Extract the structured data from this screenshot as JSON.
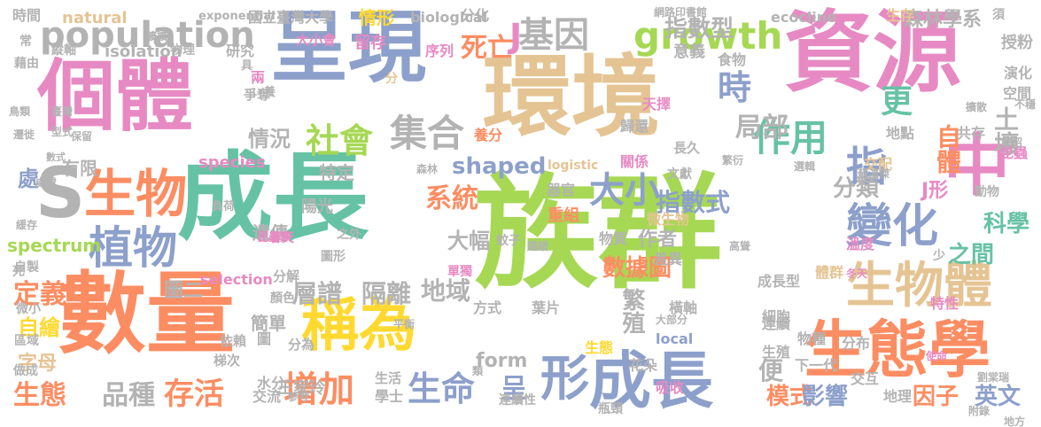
{
  "palette": [
    "#fc8d62",
    "#66c2a5",
    "#8da0cb",
    "#e78ac3",
    "#a6d854",
    "#ffd92f",
    "#e5c494",
    "#b3b3b3"
  ],
  "words": [
    {
      "text": "族群",
      "color": "#a6d854"
    },
    {
      "text": "成長",
      "color": "#66c2a5"
    },
    {
      "text": "數量",
      "color": "#fc8d62"
    },
    {
      "text": "環境",
      "color": "#e5c494"
    },
    {
      "text": "資源",
      "color": "#e78ac3"
    },
    {
      "text": "呈現",
      "color": "#8da0cb"
    },
    {
      "text": "個體",
      "color": "#e78ac3"
    },
    {
      "text": "生態學",
      "color": "#fc8d62"
    },
    {
      "text": "成長",
      "color": "#8da0cb"
    },
    {
      "text": "中",
      "color": "#e78ac3"
    },
    {
      "text": "稱為",
      "color": "#ffd92f"
    },
    {
      "text": "生物",
      "color": "#fc8d62"
    },
    {
      "text": "生物體",
      "color": "#e5c494"
    },
    {
      "text": "變化",
      "color": "#8da0cb"
    },
    {
      "text": "population",
      "color": "#b3b3b3"
    },
    {
      "text": "S",
      "color": "#b3b3b3"
    },
    {
      "text": "growth",
      "color": "#a6d854"
    },
    {
      "text": "植物",
      "color": "#8da0cb"
    },
    {
      "text": "集合",
      "color": "#b3b3b3"
    },
    {
      "text": "社會",
      "color": "#a6d854"
    },
    {
      "text": "基因",
      "color": "#b3b3b3"
    },
    {
      "text": "形",
      "color": "#8da0cb"
    },
    {
      "text": "作用",
      "color": "#66c2a5"
    },
    {
      "text": "增加",
      "color": "#fc8d62"
    },
    {
      "text": "生命",
      "color": "#8da0cb"
    },
    {
      "text": "大小",
      "color": "#8da0cb"
    },
    {
      "text": "指",
      "color": "#8da0cb"
    },
    {
      "text": "時",
      "color": "#8da0cb"
    },
    {
      "text": "局部",
      "color": "#b3b3b3"
    },
    {
      "text": "存活",
      "color": "#fc8d62"
    },
    {
      "text": "品種",
      "color": "#b3b3b3"
    },
    {
      "text": "生態",
      "color": "#fc8d62"
    },
    {
      "text": "定義",
      "color": "#fc8d62"
    },
    {
      "text": "地域",
      "color": "#b3b3b3"
    },
    {
      "text": "隔離",
      "color": "#b3b3b3"
    },
    {
      "text": "層譜",
      "color": "#b3b3b3"
    },
    {
      "text": "系統",
      "color": "#fc8d62"
    },
    {
      "text": "指數式",
      "color": "#8da0cb"
    },
    {
      "text": "死亡",
      "color": "#fc8d62"
    },
    {
      "text": "J",
      "color": "#e78ac3"
    },
    {
      "text": "分類",
      "color": "#b3b3b3"
    },
    {
      "text": "指數型",
      "color": "#b3b3b3"
    },
    {
      "text": "森林學系",
      "color": "#b3b3b3"
    },
    {
      "text": "更",
      "color": "#66c2a5"
    },
    {
      "text": "自體",
      "color": "#fc8d62"
    },
    {
      "text": "土壤",
      "color": "#b3b3b3"
    },
    {
      "text": "科學",
      "color": "#66c2a5"
    },
    {
      "text": "之間",
      "color": "#66c2a5"
    },
    {
      "text": "J形",
      "color": "#e78ac3"
    },
    {
      "text": "模式",
      "color": "#fc8d62"
    },
    {
      "text": "影響",
      "color": "#8da0cb"
    },
    {
      "text": "因子",
      "color": "#fc8d62"
    },
    {
      "text": "英文",
      "color": "#8da0cb"
    },
    {
      "text": "繁殖",
      "color": "#b3b3b3"
    },
    {
      "text": "呈",
      "color": "#8da0cb"
    },
    {
      "text": "數據圖",
      "color": "#fc8d62"
    },
    {
      "text": "作者",
      "color": "#b3b3b3"
    },
    {
      "text": "大幅",
      "color": "#b3b3b3"
    },
    {
      "text": "情況",
      "color": "#b3b3b3"
    },
    {
      "text": "情形",
      "color": "#ffd92f"
    },
    {
      "text": "shaped",
      "color": "#8da0cb"
    },
    {
      "text": "form",
      "color": "#b3b3b3"
    },
    {
      "text": "便",
      "color": "#b3b3b3"
    },
    {
      "text": "自繪",
      "color": "#ffd92f"
    },
    {
      "text": "處",
      "color": "#8da0cb"
    },
    {
      "text": "有限",
      "color": "#b3b3b3"
    },
    {
      "text": "特定",
      "color": "#b3b3b3"
    },
    {
      "text": "重組",
      "color": "#fc8d62"
    },
    {
      "text": "遺傳",
      "color": "#b3b3b3"
    },
    {
      "text": "陽光",
      "color": "#b3b3b3"
    },
    {
      "text": "圖二",
      "color": "#b3b3b3"
    },
    {
      "text": "字母",
      "color": "#e5c494"
    },
    {
      "text": "簡單",
      "color": "#b3b3b3"
    },
    {
      "text": "王家玲",
      "color": "#b3b3b3"
    },
    {
      "text": "spectrum",
      "color": "#a6d854"
    },
    {
      "text": "species",
      "color": "#e78ac3"
    },
    {
      "text": "local",
      "color": "#8da0cb"
    },
    {
      "text": "natural",
      "color": "#e5c494"
    },
    {
      "text": "isolation",
      "color": "#b3b3b3"
    },
    {
      "text": "biological",
      "color": "#b3b3b3"
    },
    {
      "text": "ecocline",
      "color": "#b3b3b3"
    },
    {
      "text": "logistic",
      "color": "#e5c494"
    },
    {
      "text": "selection",
      "color": "#e78ac3"
    },
    {
      "text": "exponential",
      "color": "#b3b3b3"
    },
    {
      "text": "國立臺灣大學",
      "color": "#b3b3b3"
    },
    {
      "text": "分化",
      "color": "#b3b3b3"
    },
    {
      "text": "時間",
      "color": "#b3b3b3"
    },
    {
      "text": "縱軸",
      "color": "#b3b3b3"
    },
    {
      "text": "物理",
      "color": "#b3b3b3"
    },
    {
      "text": "大小會",
      "color": "#e78ac3"
    },
    {
      "text": "研究",
      "color": "#b3b3b3"
    },
    {
      "text": "留存",
      "color": "#e78ac3"
    },
    {
      "text": "序列",
      "color": "#e78ac3"
    },
    {
      "text": "意義",
      "color": "#b3b3b3"
    },
    {
      "text": "食物",
      "color": "#b3b3b3"
    },
    {
      "text": "生存",
      "color": "#e5c494"
    },
    {
      "text": "授粉",
      "color": "#b3b3b3"
    },
    {
      "text": "天擇",
      "color": "#e78ac3"
    },
    {
      "text": "演化",
      "color": "#b3b3b3"
    },
    {
      "text": "空間",
      "color": "#b3b3b3"
    },
    {
      "text": "兩",
      "color": "#e78ac3"
    },
    {
      "text": "爭奪",
      "color": "#b3b3b3"
    },
    {
      "text": "養分",
      "color": "#fc8d62"
    },
    {
      "text": "歸還",
      "color": "#b3b3b3"
    },
    {
      "text": "長久",
      "color": "#b3b3b3"
    },
    {
      "text": "地點",
      "color": "#b3b3b3"
    },
    {
      "text": "共存",
      "color": "#b3b3b3"
    },
    {
      "text": "交配",
      "color": "#e5c494"
    },
    {
      "text": "昆蟲",
      "color": "#e78ac3"
    },
    {
      "text": "關係",
      "color": "#e78ac3"
    },
    {
      "text": "文獻",
      "color": "#b3b3b3"
    },
    {
      "text": "器官",
      "color": "#b3b3b3"
    },
    {
      "text": "微生物",
      "color": "#e5c494"
    },
    {
      "text": "動物",
      "color": "#b3b3b3"
    },
    {
      "text": "物質",
      "color": "#b3b3b3"
    },
    {
      "text": "差異",
      "color": "#b3b3b3"
    },
    {
      "text": "溫度",
      "color": "#e78ac3"
    },
    {
      "text": "體群",
      "color": "#e5c494"
    },
    {
      "text": "成長型",
      "color": "#b3b3b3"
    },
    {
      "text": "細胞",
      "color": "#b3b3b3"
    },
    {
      "text": "特性",
      "color": "#e78ac3"
    },
    {
      "text": "橫軸",
      "color": "#b3b3b3"
    },
    {
      "text": "單獨",
      "color": "#e78ac3"
    },
    {
      "text": "分解",
      "color": "#b3b3b3"
    },
    {
      "text": "顏色",
      "color": "#b3b3b3"
    },
    {
      "text": "方式",
      "color": "#b3b3b3"
    },
    {
      "text": "葉片",
      "color": "#b3b3b3"
    },
    {
      "text": "連續",
      "color": "#b3b3b3"
    },
    {
      "text": "物種",
      "color": "#b3b3b3"
    },
    {
      "text": "分布",
      "color": "#b3b3b3"
    },
    {
      "text": "生殖",
      "color": "#b3b3b3"
    },
    {
      "text": "生態",
      "color": "#ffd92f"
    },
    {
      "text": "花朵",
      "color": "#b3b3b3"
    },
    {
      "text": "吸收",
      "color": "#e78ac3"
    },
    {
      "text": "下一代",
      "color": "#b3b3b3"
    },
    {
      "text": "交互",
      "color": "#b3b3b3"
    },
    {
      "text": "地理",
      "color": "#b3b3b3"
    },
    {
      "text": "學士",
      "color": "#b3b3b3"
    },
    {
      "text": "連續性",
      "color": "#b3b3b3"
    },
    {
      "text": "瓶頸",
      "color": "#b3b3b3"
    },
    {
      "text": "生活",
      "color": "#b3b3b3"
    },
    {
      "text": "交流",
      "color": "#b3b3b3"
    },
    {
      "text": "水分",
      "color": "#b3b3b3"
    },
    {
      "text": "分為",
      "color": "#b3b3b3"
    },
    {
      "text": "圖",
      "color": "#b3b3b3"
    },
    {
      "text": "梯次",
      "color": "#b3b3b3"
    },
    {
      "text": "依賴",
      "color": "#b3b3b3"
    },
    {
      "text": "區域",
      "color": "#b3b3b3"
    },
    {
      "text": "微小",
      "color": "#b3b3b3"
    },
    {
      "text": "做成",
      "color": "#b3b3b3"
    },
    {
      "text": "自製",
      "color": "#b3b3b3"
    },
    {
      "text": "死",
      "color": "#b3b3b3"
    },
    {
      "text": "處處",
      "color": "#b3b3b3"
    },
    {
      "text": "鳥類",
      "color": "#b3b3b3"
    },
    {
      "text": "臺灣",
      "color": "#b3b3b3"
    },
    {
      "text": "型式",
      "color": "#b3b3b3"
    },
    {
      "text": "保留",
      "color": "#b3b3b3"
    },
    {
      "text": "遷徙",
      "color": "#b3b3b3"
    },
    {
      "text": "數式",
      "color": "#b3b3b3"
    },
    {
      "text": "藉由",
      "color": "#b3b3b3"
    },
    {
      "text": "常",
      "color": "#b3b3b3"
    },
    {
      "text": "擴擴",
      "color": "#b3b3b3"
    },
    {
      "text": "養",
      "color": "#b3b3b3"
    },
    {
      "text": "具",
      "color": "#b3b3b3"
    },
    {
      "text": "分",
      "color": "#e5c494"
    },
    {
      "text": "春天",
      "color": "#e78ac3"
    },
    {
      "text": "之外",
      "color": "#b3b3b3"
    },
    {
      "text": "圖形",
      "color": "#b3b3b3"
    },
    {
      "text": "蚊子",
      "color": "#b3b3b3"
    },
    {
      "text": "須",
      "color": "#b3b3b3"
    },
    {
      "text": "繁衍",
      "color": "#b3b3b3"
    },
    {
      "text": "擴散",
      "color": "#b3b3b3"
    },
    {
      "text": "不穩",
      "color": "#b3b3b3"
    },
    {
      "text": "少",
      "color": "#b3b3b3"
    },
    {
      "text": "冬天",
      "color": "#e78ac3"
    },
    {
      "text": "劉棠瑞",
      "color": "#b3b3b3"
    },
    {
      "text": "地方",
      "color": "#b3b3b3"
    },
    {
      "text": "負荷",
      "color": "#b3b3b3"
    },
    {
      "text": "使命",
      "color": "#e78ac3"
    },
    {
      "text": "大部分",
      "color": "#b3b3b3"
    },
    {
      "text": "參考",
      "color": "#b3b3b3"
    },
    {
      "text": "平衡",
      "color": "#b3b3b3"
    },
    {
      "text": "類",
      "color": "#b3b3b3"
    },
    {
      "text": "森林",
      "color": "#b3b3b3"
    },
    {
      "text": "附錄",
      "color": "#b3b3b3"
    },
    {
      "text": "蘇鴻傑",
      "color": "#b3b3b3"
    },
    {
      "text": "選輯",
      "color": "#b3b3b3"
    },
    {
      "text": "趨緩",
      "color": "#b3b3b3"
    },
    {
      "text": "高聳",
      "color": "#b3b3b3"
    },
    {
      "text": "鄭紹",
      "color": "#b3b3b3"
    },
    {
      "text": "昆蟲類",
      "color": "#e78ac3"
    },
    {
      "text": "緩存",
      "color": "#b3b3b3"
    },
    {
      "text": "網路印書館",
      "color": "#b3b3b3"
    }
  ]
}
